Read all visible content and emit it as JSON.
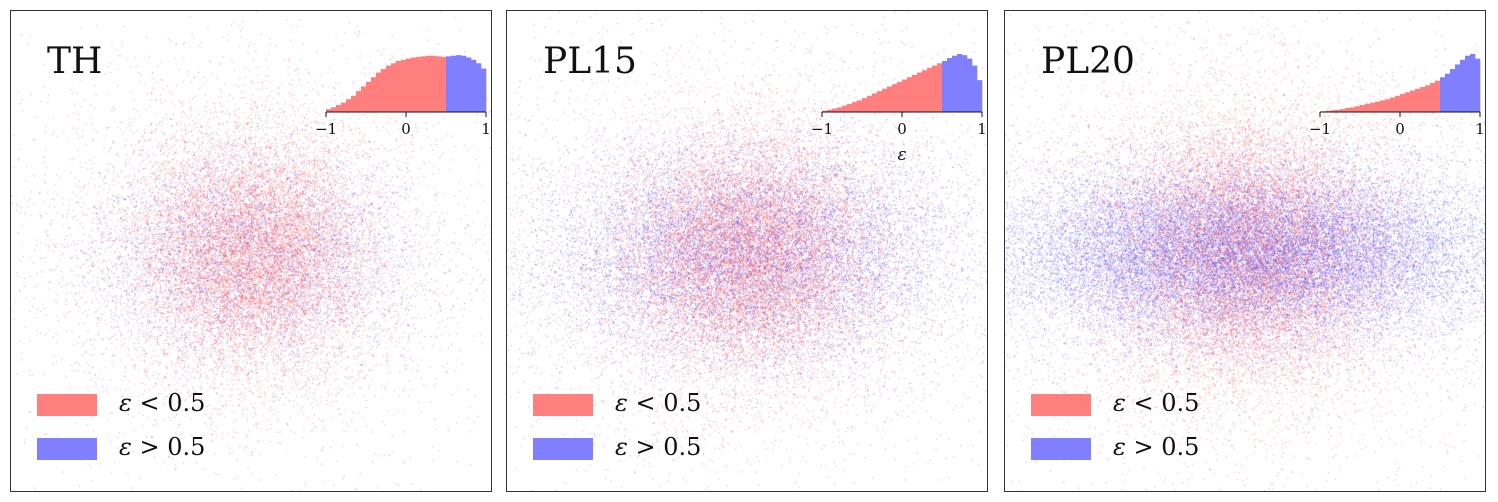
{
  "colors": {
    "low": "#ff4d4d",
    "high": "#4d4dff",
    "low_swatch": "#ff7f7f",
    "high_swatch": "#7f7fff"
  },
  "legend": {
    "low": {
      "symbol": "ε",
      "text": " < 0.5"
    },
    "high": {
      "symbol": "ε",
      "text": " > 0.5"
    }
  },
  "chart_data": [
    {
      "type": "scatter",
      "title": "TH",
      "series": [
        {
          "name": "ε < 0.5",
          "spread_x": 0.55,
          "spread_y": 0.55,
          "count": 14000
        },
        {
          "name": "ε > 0.5",
          "spread_x": 0.75,
          "spread_y": 0.5,
          "count": 6000
        }
      ],
      "inset": {
        "type": "histogram",
        "xlabel": "",
        "xticks": [
          "−1",
          "0",
          "1"
        ],
        "xlim": [
          -1,
          1
        ],
        "threshold": 0.5,
        "density": [
          0.05,
          0.08,
          0.12,
          0.16,
          0.22,
          0.28,
          0.36,
          0.44,
          0.52,
          0.6,
          0.68,
          0.74,
          0.8,
          0.84,
          0.88,
          0.9,
          0.92,
          0.94,
          0.95,
          0.96,
          0.97,
          0.97,
          0.96,
          0.95,
          0.96,
          0.97,
          0.98,
          0.97,
          0.94,
          0.9,
          0.84,
          0.75
        ]
      }
    },
    {
      "type": "scatter",
      "title": "PL15",
      "series": [
        {
          "name": "ε < 0.5",
          "spread_x": 0.6,
          "spread_y": 0.55,
          "count": 16000
        },
        {
          "name": "ε > 0.5",
          "spread_x": 0.95,
          "spread_y": 0.48,
          "count": 14000
        }
      ],
      "inset": {
        "type": "histogram",
        "xlabel": "ε",
        "xticks": [
          "−1",
          "0",
          "1"
        ],
        "xlim": [
          -1,
          1
        ],
        "threshold": 0.5,
        "density": [
          0.02,
          0.04,
          0.06,
          0.08,
          0.11,
          0.14,
          0.17,
          0.2,
          0.24,
          0.28,
          0.32,
          0.36,
          0.4,
          0.44,
          0.48,
          0.52,
          0.56,
          0.6,
          0.64,
          0.68,
          0.72,
          0.76,
          0.8,
          0.84,
          0.88,
          0.93,
          0.97,
          1.0,
          0.98,
          0.92,
          0.8,
          0.55
        ]
      }
    },
    {
      "type": "scatter",
      "title": "PL20",
      "series": [
        {
          "name": "ε < 0.5",
          "spread_x": 0.65,
          "spread_y": 0.62,
          "count": 18000
        },
        {
          "name": "ε > 0.5",
          "spread_x": 1.15,
          "spread_y": 0.38,
          "count": 26000
        }
      ],
      "inset": {
        "type": "histogram",
        "xlabel": "",
        "xticks": [
          "−1",
          "0",
          "1"
        ],
        "xlim": [
          -1,
          1
        ],
        "threshold": 0.5,
        "density": [
          0.01,
          0.02,
          0.03,
          0.04,
          0.05,
          0.07,
          0.08,
          0.1,
          0.12,
          0.14,
          0.16,
          0.18,
          0.2,
          0.22,
          0.25,
          0.28,
          0.31,
          0.34,
          0.37,
          0.4,
          0.43,
          0.46,
          0.5,
          0.54,
          0.6,
          0.66,
          0.74,
          0.82,
          0.9,
          0.97,
          1.0,
          0.92
        ]
      }
    }
  ]
}
